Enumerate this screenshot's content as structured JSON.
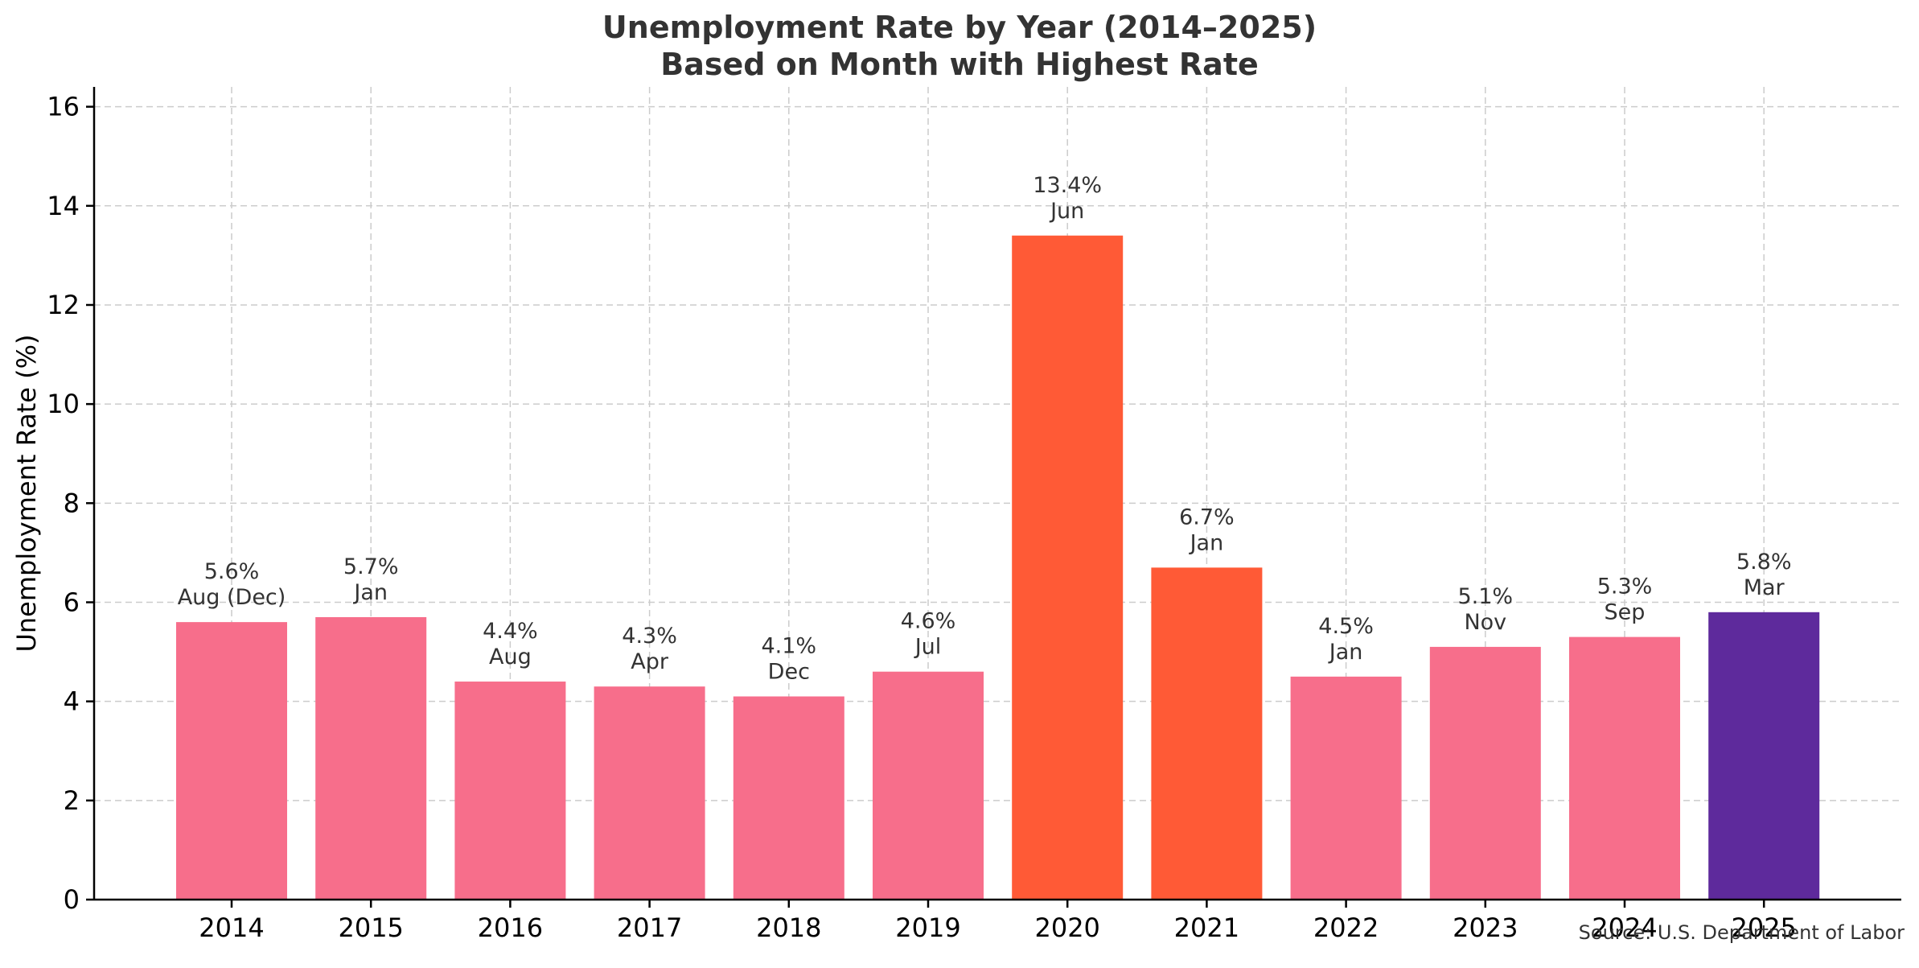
{
  "chart_data": {
    "type": "bar",
    "title": "Unemployment Rate by Year (2014–2025)",
    "subtitle": "Based on Month with Highest Rate",
    "xlabel": "",
    "ylabel": "Unemployment Rate (%)",
    "ylim": [
      0,
      16.4
    ],
    "yticks": [
      0,
      2,
      4,
      6,
      8,
      10,
      12,
      14,
      16
    ],
    "grid": true,
    "categories": [
      "2014",
      "2015",
      "2016",
      "2017",
      "2018",
      "2019",
      "2020",
      "2021",
      "2022",
      "2023",
      "2024",
      "2025"
    ],
    "values": [
      5.6,
      5.7,
      4.4,
      4.3,
      4.1,
      4.6,
      13.4,
      6.7,
      4.5,
      5.1,
      5.3,
      5.8
    ],
    "value_labels": [
      "5.6%",
      "5.7%",
      "4.4%",
      "4.3%",
      "4.1%",
      "4.6%",
      "13.4%",
      "6.7%",
      "4.5%",
      "5.1%",
      "5.3%",
      "5.8%"
    ],
    "months": [
      "Aug (Dec)",
      "Jan",
      "Aug",
      "Apr",
      "Dec",
      "Jul",
      "Jun",
      "Jan",
      "Jan",
      "Nov",
      "Sep",
      "Mar"
    ],
    "bar_colors": [
      "#f76e8b",
      "#f76e8b",
      "#f76e8b",
      "#f76e8b",
      "#f76e8b",
      "#f76e8b",
      "#ff5a36",
      "#ff5a36",
      "#f76e8b",
      "#f76e8b",
      "#f76e8b",
      "#5e2a9c"
    ],
    "source": "Source: U.S. Department of Labor"
  }
}
